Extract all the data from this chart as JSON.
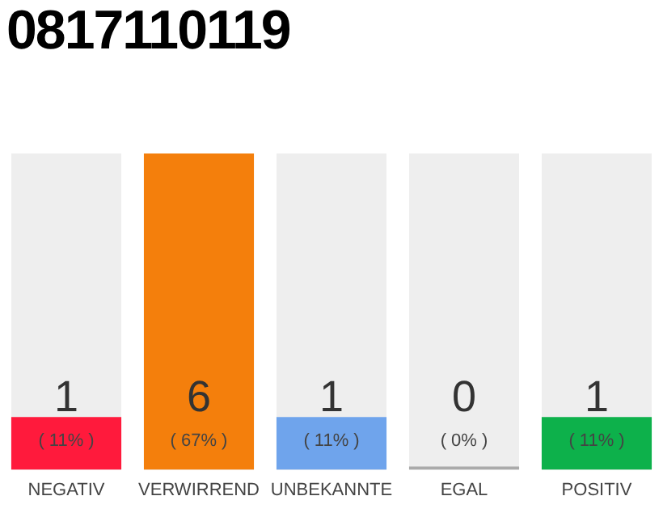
{
  "chart_data": {
    "type": "bar",
    "title": "0817110119",
    "categories": [
      "NEGATIV",
      "VERWIRREND",
      "UNBEKANNTE",
      "EGAL",
      "POSITIV"
    ],
    "values": [
      1,
      6,
      1,
      0,
      1
    ],
    "colors": [
      "#ff1a3c",
      "#f47f0c",
      "#6fa4ec",
      "#aaaaaa",
      "#0db14b"
    ],
    "data_labels": true,
    "annotations": [
      "( 11% )",
      "( 67% )",
      "( 11% )",
      "( 0% )",
      "( 11% )"
    ],
    "grid": false,
    "legend": false
  }
}
